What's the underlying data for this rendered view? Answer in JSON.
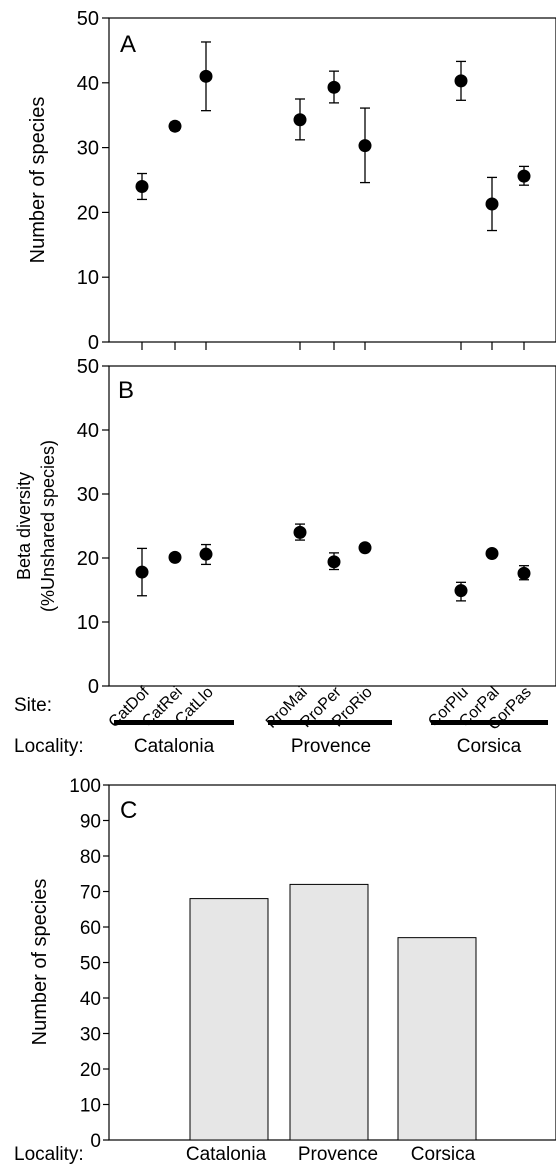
{
  "chart_data": [
    {
      "type": "scatter",
      "panel_label": "A",
      "ylabel": "Number of species",
      "ylim": [
        0,
        50
      ],
      "yticks": [
        "0",
        "10",
        "20",
        "30",
        "40",
        "50"
      ],
      "categories": [
        "CatDof",
        "CatRei",
        "CatLlo",
        "ProMai",
        "ProPer",
        "ProRio",
        "CorPlu",
        "CorPal",
        "CorPas"
      ],
      "values": [
        24,
        33.3,
        41,
        34.3,
        39.3,
        30.3,
        40.3,
        21.3,
        25.6
      ],
      "err_low": [
        22,
        32.7,
        35.7,
        31.2,
        36.9,
        24.6,
        37.3,
        17.2,
        24.2
      ],
      "err_high": [
        26,
        33.9,
        46.3,
        37.5,
        41.8,
        36.1,
        43.3,
        25.4,
        27.1
      ],
      "grid": false
    },
    {
      "type": "scatter",
      "panel_label": "B",
      "ylabel_line1": "Beta diversity",
      "ylabel_line2": "(%Unshared species)",
      "ylim": [
        0,
        50
      ],
      "yticks": [
        "0",
        "10",
        "20",
        "30",
        "40",
        "50"
      ],
      "categories": [
        "CatDof",
        "CatRei",
        "CatLlo",
        "ProMai",
        "ProPer",
        "ProRio",
        "CorPlu",
        "CorPal",
        "CorPas"
      ],
      "values": [
        17.8,
        20.1,
        20.6,
        24,
        19.4,
        21.6,
        14.9,
        20.7,
        17.6
      ],
      "err_low": [
        14.1,
        19.8,
        19,
        22.8,
        18.2,
        21.2,
        13.3,
        20.4,
        16.6
      ],
      "err_high": [
        21.5,
        20.4,
        22.1,
        25.3,
        20.8,
        22,
        16.2,
        21,
        18.8
      ],
      "grid": false
    },
    {
      "type": "bar",
      "panel_label": "C",
      "ylabel": "Number of species",
      "ylim": [
        0,
        100
      ],
      "yticks": [
        "0",
        "10",
        "20",
        "30",
        "40",
        "50",
        "60",
        "70",
        "80",
        "90",
        "100"
      ],
      "categories": [
        "Catalonia",
        "Provence",
        "Corsica"
      ],
      "values": [
        68,
        72,
        57
      ],
      "bar_color": "#e6e6e6",
      "grid": false
    }
  ],
  "labels": {
    "site": "Site:",
    "locality": "Locality:",
    "localities": [
      "Catalonia",
      "Provence",
      "Corsica"
    ],
    "locality_c": "Locality:"
  }
}
